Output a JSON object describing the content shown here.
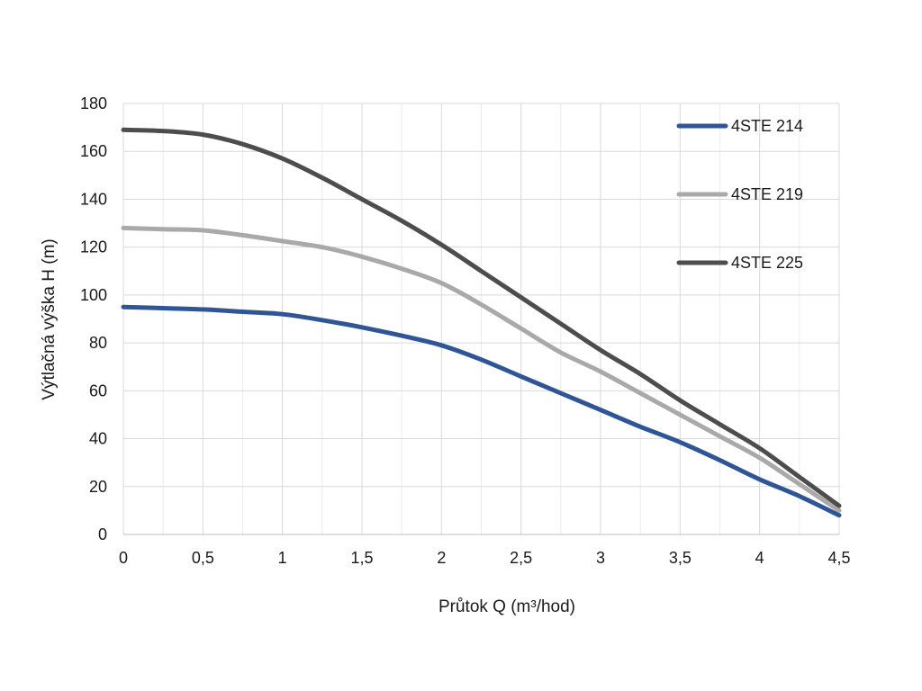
{
  "chart_data": {
    "type": "line",
    "xlabel": "Průtok Q (m³/hod)",
    "ylabel": "Výtlačná výška H (m)",
    "xlim": [
      0,
      4.5
    ],
    "ylim": [
      0,
      180
    ],
    "x_ticks": [
      "0",
      "0,5",
      "1",
      "1,5",
      "2",
      "2,5",
      "3",
      "3,5",
      "4",
      "4,5"
    ],
    "y_ticks": [
      "0",
      "20",
      "40",
      "60",
      "80",
      "100",
      "120",
      "140",
      "160",
      "180"
    ],
    "grid": true,
    "legend_position": "top-right",
    "series": [
      {
        "name": "4STE 214",
        "color": "#2f5597",
        "x": [
          0,
          0.25,
          0.5,
          0.75,
          1.0,
          1.25,
          1.5,
          1.75,
          2.0,
          2.25,
          2.5,
          2.75,
          3.0,
          3.25,
          3.5,
          3.75,
          4.0,
          4.25,
          4.5
        ],
        "y": [
          95,
          94.5,
          94,
          93,
          92,
          89.5,
          86.5,
          83,
          79,
          73,
          66,
          59,
          52,
          45,
          38.5,
          31,
          23,
          16,
          8
        ]
      },
      {
        "name": "4STE 219",
        "color": "#a9a9a9",
        "x": [
          0,
          0.25,
          0.5,
          0.75,
          1.0,
          1.25,
          1.5,
          1.75,
          2.0,
          2.25,
          2.5,
          2.75,
          3.0,
          3.25,
          3.5,
          3.75,
          4.0,
          4.25,
          4.5
        ],
        "y": [
          128,
          127.5,
          127,
          125,
          122.5,
          120,
          116,
          111,
          105,
          96,
          86,
          76,
          68,
          59,
          50,
          41,
          32,
          21,
          10
        ]
      },
      {
        "name": "4STE 225",
        "color": "#4d4d4d",
        "x": [
          0,
          0.25,
          0.5,
          0.75,
          1.0,
          1.25,
          1.5,
          1.75,
          2.0,
          2.25,
          2.5,
          2.75,
          3.0,
          3.25,
          3.5,
          3.75,
          4.0,
          4.25,
          4.5
        ],
        "y": [
          169,
          168.5,
          167,
          163,
          157,
          149,
          140,
          131,
          121,
          110,
          99,
          88,
          77,
          67,
          56,
          46,
          36,
          24,
          12
        ]
      }
    ]
  }
}
